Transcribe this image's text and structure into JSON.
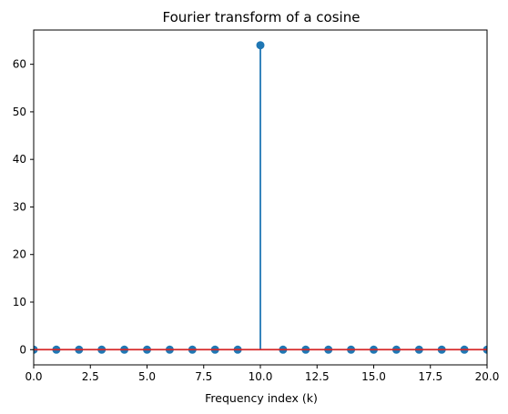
{
  "chart_data": {
    "type": "stem",
    "title": "Fourier transform of a cosine",
    "xlabel": "Frequency index (k)",
    "ylabel": "",
    "xlim": [
      0,
      20
    ],
    "ylim": [
      -3.2,
      67.2
    ],
    "x_ticks": [
      0,
      2.5,
      5,
      7.5,
      10,
      12.5,
      15,
      17.5,
      20
    ],
    "x_tick_labels": [
      "0.0",
      "2.5",
      "5.0",
      "7.5",
      "10.0",
      "12.5",
      "15.0",
      "17.5",
      "20.0"
    ],
    "y_ticks": [
      0,
      10,
      20,
      30,
      40,
      50,
      60
    ],
    "y_tick_labels": [
      "0",
      "10",
      "20",
      "30",
      "40",
      "50",
      "60"
    ],
    "grid": false,
    "series": [
      {
        "x": [
          0,
          1,
          2,
          3,
          4,
          5,
          6,
          7,
          8,
          9,
          10,
          11,
          12,
          13,
          14,
          15,
          16,
          17,
          18,
          19,
          20
        ],
        "values": [
          0,
          0,
          0,
          0,
          0,
          0,
          0,
          0,
          0,
          0,
          64,
          0,
          0,
          0,
          0,
          0,
          0,
          0,
          0,
          0,
          0
        ]
      }
    ],
    "colors": {
      "stem": "#1f77b4",
      "marker": "#1f77b4",
      "baseline": "#d62728"
    }
  }
}
